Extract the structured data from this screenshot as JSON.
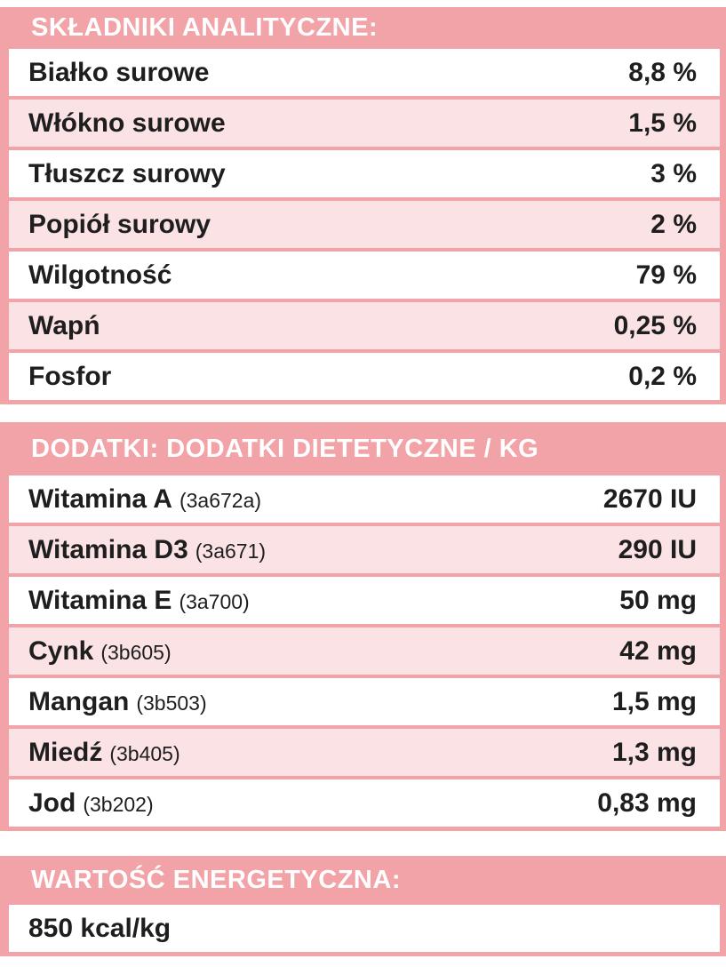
{
  "colors": {
    "salmon_header": "#F2A3A8",
    "light_pink_row": "#FBE2E5",
    "white_row": "#FFFFFF",
    "header_text": "#FFFFFF",
    "body_text": "#1E1E1E"
  },
  "sections": [
    {
      "title": "SKŁADNIKI ANALITYCZNE:",
      "rows": [
        {
          "label": "Białko surowe",
          "code": "",
          "value": "8,8 %"
        },
        {
          "label": "Włókno surowe",
          "code": "",
          "value": "1,5 %"
        },
        {
          "label": "Tłuszcz surowy",
          "code": "",
          "value": "3 %"
        },
        {
          "label": "Popiół surowy",
          "code": "",
          "value": "2 %"
        },
        {
          "label": "Wilgotność",
          "code": "",
          "value": "79 %"
        },
        {
          "label": "Wapń",
          "code": "",
          "value": "0,25 %"
        },
        {
          "label": "Fosfor",
          "code": "",
          "value": "0,2 %"
        }
      ]
    },
    {
      "title": "DODATKI: DODATKI DIETETYCZNE / KG",
      "rows": [
        {
          "label": "Witamina A",
          "code": "(3a672a)",
          "value": "2670 IU"
        },
        {
          "label": "Witamina D3",
          "code": "(3a671)",
          "value": "290 IU"
        },
        {
          "label": "Witamina E",
          "code": "(3a700)",
          "value": "50 mg"
        },
        {
          "label": "Cynk",
          "code": "(3b605)",
          "value": "42 mg"
        },
        {
          "label": "Mangan",
          "code": "(3b503)",
          "value": "1,5 mg"
        },
        {
          "label": "Miedź",
          "code": "(3b405)",
          "value": "1,3 mg"
        },
        {
          "label": "Jod",
          "code": "(3b202)",
          "value": "0,83 mg"
        }
      ]
    },
    {
      "title": "WARTOŚĆ ENERGETYCZNA:",
      "rows": [
        {
          "label": "850 kcal/kg",
          "code": "",
          "value": ""
        }
      ]
    }
  ]
}
